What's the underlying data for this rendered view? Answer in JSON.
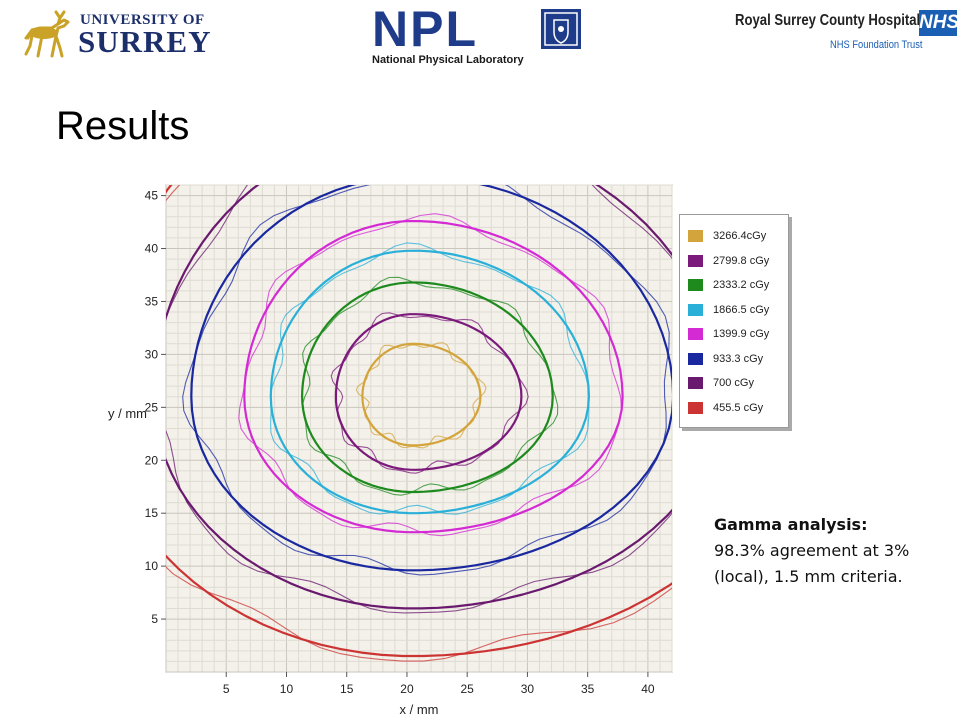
{
  "header": {
    "university_logo": {
      "line1": "UNIVERSITY OF",
      "line2": "SURREY",
      "icon": "stag-icon",
      "color": "#c9a227"
    },
    "npl_logo": {
      "name": "NPL",
      "subtitle": "National Physical Laboratory",
      "icon": "crest-icon",
      "color": "#1f3c8a"
    },
    "hospital_logo": {
      "name": "Royal Surrey County Hospital",
      "badge": "NHS",
      "trust": "NHS Foundation Trust",
      "color": "#1b5fb4"
    }
  },
  "slide": {
    "title": "Results"
  },
  "gamma": {
    "heading": "Gamma analysis:",
    "line1": "98.3% agreement at 3%",
    "line2": "(local), 1.5 mm criteria."
  },
  "chart_data": {
    "type": "contour",
    "title": "",
    "xlabel": "x / mm",
    "ylabel": "y / mm",
    "xlim": [
      0,
      42
    ],
    "ylim": [
      0,
      46
    ],
    "xticks": [
      5,
      10,
      15,
      20,
      25,
      30,
      35,
      40
    ],
    "yticks": [
      5,
      10,
      15,
      20,
      25,
      30,
      35,
      40,
      45
    ],
    "grid": true,
    "legend_position": "right",
    "center": [
      20.5,
      26
    ],
    "series": [
      {
        "name": "3266.4cGy",
        "color": "#d4a43c",
        "level": 3266.4,
        "radius": [
          5.6,
          5.0,
          4.2,
          4.6
        ]
      },
      {
        "name": "2799.8 cGy",
        "color": "#7b1a7b",
        "level": 2799.8,
        "radius": [
          9.0,
          7.8,
          6.4,
          6.9
        ]
      },
      {
        "name": "2333.2 cGy",
        "color": "#1e8a1e",
        "level": 2333.2,
        "radius": [
          11.6,
          10.8,
          9.2,
          9.0
        ]
      },
      {
        "name": "1866.5 cGy",
        "color": "#2ab0d8",
        "level": 1866.5,
        "radius": [
          14.6,
          13.8,
          11.8,
          11.0
        ]
      },
      {
        "name": "1399.9 cGy",
        "color": "#d42ad4",
        "level": 1399.9,
        "radius": [
          17.4,
          16.6,
          14.0,
          12.8
        ]
      },
      {
        "name": "933.3 cGy",
        "color": "#1a28a0",
        "level": 933.3,
        "radius": [
          21.6,
          20.8,
          18.4,
          16.4
        ]
      },
      {
        "name": "700 cGy",
        "color": "#6a1a6e",
        "level": 700,
        "radius": [
          25.5,
          25.0,
          21.5,
          20.0
        ]
      },
      {
        "name": "455.5 cGy",
        "color": "#cc3333",
        "level": 455.5,
        "radius": [
          31.0,
          31.5,
          26.0,
          24.5
        ]
      }
    ]
  }
}
